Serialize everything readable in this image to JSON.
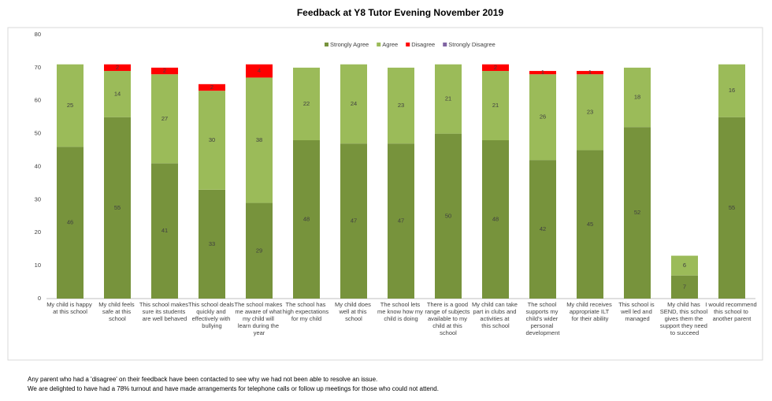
{
  "chart_data": {
    "type": "stacked_bar",
    "title": "Feedback at Y8 Tutor Evening November 2019",
    "categories": [
      "My child is happy at this school",
      "My child feels safe at this school",
      "This school makes sure its students are well behaved",
      "This school deals quickly and effectively with bullying",
      "The school makes me aware of what my child will learn during the year",
      "The school has high expectations for my child",
      "My child does well at this school",
      "The school lets me know how my child is doing",
      "There is a good range of subjects available to my child at this school",
      "My child can take part in clubs and activities at this school",
      "The school supports my child's wider personal development",
      "My child receives appropriate ILT for their ability",
      "This school is well led and managed",
      "My child has SEND, this school gives them the support they need to succeed",
      "I would recommend this school to another parent"
    ],
    "series": [
      {
        "name": "Strongly Agree",
        "color": "#77933c",
        "values": [
          46,
          55,
          41,
          33,
          29,
          48,
          47,
          47,
          50,
          48,
          42,
          45,
          52,
          7,
          55
        ]
      },
      {
        "name": "Agree",
        "color": "#9bbb59",
        "values": [
          25,
          14,
          27,
          30,
          38,
          22,
          24,
          23,
          21,
          21,
          26,
          23,
          18,
          6,
          16
        ]
      },
      {
        "name": "Disagree",
        "color": "#ff0000",
        "values": [
          0,
          2,
          2,
          2,
          4,
          0,
          0,
          0,
          0,
          2,
          1,
          1,
          0,
          0,
          0
        ]
      },
      {
        "name": "Strongly Disagree",
        "color": "#8064a2",
        "values": [
          0,
          0,
          0,
          0,
          0,
          0,
          0,
          0,
          0,
          0,
          0,
          0,
          0,
          0,
          0
        ]
      }
    ],
    "ylim": [
      0,
      80
    ],
    "yticks": [
      0,
      10,
      20,
      30,
      40,
      50,
      60,
      70,
      80
    ],
    "legend": "top",
    "notes": [
      "Any parent who had a 'disagree' on their feedback have been contacted to see why we had not been able to resolve an issue.",
      "We are delighted to have had a 78% turnout and have made arrangements for telephone calls or follow up meetings for those who could not attend."
    ]
  }
}
